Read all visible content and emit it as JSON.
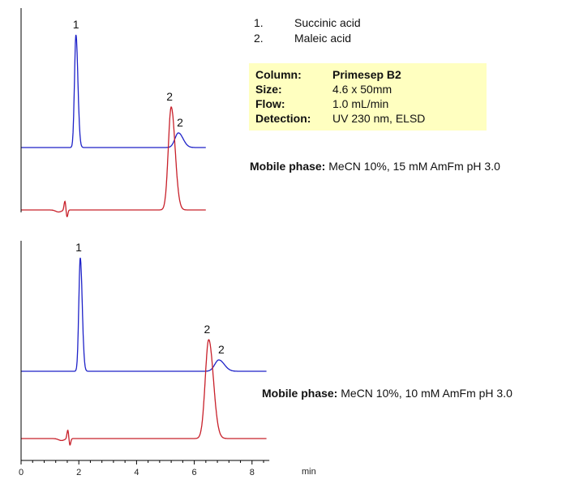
{
  "compounds": [
    {
      "num": "1.",
      "name": "Succinic acid"
    },
    {
      "num": "2.",
      "name": "Maleic acid"
    }
  ],
  "conditions": [
    {
      "label": "Column:",
      "value": "Primesep B2",
      "bold": true
    },
    {
      "label": "Size:",
      "value": "4.6 x 50mm",
      "bold": false
    },
    {
      "label": "Flow:",
      "value": "1.0 mL/min",
      "bold": false
    },
    {
      "label": "Detection:",
      "value": "UV 230 nm, ELSD",
      "bold": false
    }
  ],
  "mobile_phases": {
    "top": {
      "label": "Mobile phase:",
      "value": "MeCN 10%,  15 mM AmFm  pH 3.0"
    },
    "bottom": {
      "label": "Mobile phase:",
      "value": "MeCN 10%,  10 mM AmFm  pH 3.0"
    }
  },
  "colors": {
    "uv": "#1e22c8",
    "elsd": "#c8202a",
    "axis": "#000000",
    "panel": "#ffffc0"
  },
  "chart_data": {
    "type": "line",
    "x_axis": {
      "unit_label": "min",
      "ticks": [
        0,
        2,
        4,
        6,
        8
      ],
      "range": [
        0,
        8.6
      ]
    },
    "grid": false,
    "panels": [
      {
        "series": [
          {
            "detector": "UV",
            "color": "#1e22c8",
            "x_range": [
              0,
              6.4
            ],
            "peaks": [
              {
                "label": "1",
                "rt": 1.9,
                "height": 1.0,
                "width": 0.05
              },
              {
                "label": "2",
                "rt": 5.45,
                "height": 0.13,
                "width": 0.12
              }
            ]
          },
          {
            "detector": "ELSD",
            "color": "#c8202a",
            "x_range": [
              0,
              6.4
            ],
            "peaks": [
              {
                "label": "2",
                "rt": 5.2,
                "height": 1.0,
                "width": 0.1
              }
            ],
            "disturbance_rt": 1.55
          }
        ]
      },
      {
        "series": [
          {
            "detector": "UV",
            "color": "#1e22c8",
            "x_range": [
              0,
              8.5
            ],
            "peaks": [
              {
                "label": "1",
                "rt": 2.05,
                "height": 1.0,
                "width": 0.05
              },
              {
                "label": "2",
                "rt": 6.85,
                "height": 0.1,
                "width": 0.14
              }
            ]
          },
          {
            "detector": "ELSD",
            "color": "#c8202a",
            "x_range": [
              0,
              8.5
            ],
            "peaks": [
              {
                "label": "2",
                "rt": 6.5,
                "height": 1.0,
                "width": 0.12
              }
            ],
            "disturbance_rt": 1.65
          }
        ]
      }
    ]
  }
}
